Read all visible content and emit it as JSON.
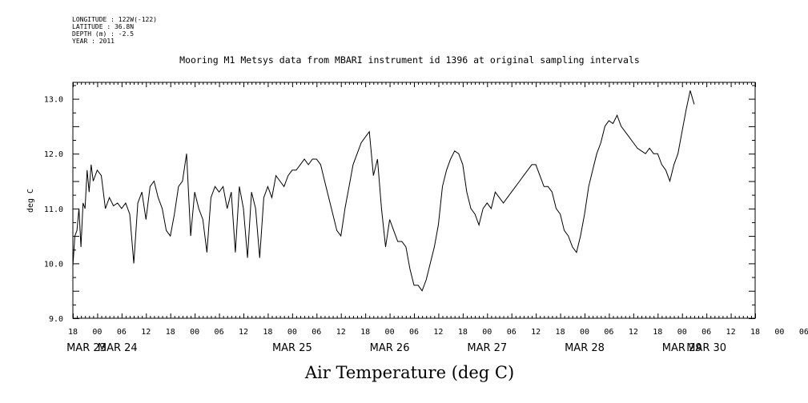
{
  "meta_lines": {
    "longitude": "LONGITUDE : 122W(-122)",
    "latitude": "LATITUDE : 36.8N",
    "depth": "DEPTH (m) : -2.5",
    "year": "YEAR : 2011"
  },
  "chart_data": {
    "type": "line",
    "title": "Mooring M1 Metsys data from MBARI instrument id 1396 at original sampling intervals",
    "xlabel": "Air Temperature (deg C)",
    "ylabel": "deg C",
    "ylim": [
      9.0,
      13.3
    ],
    "yticks": [
      "9.0",
      "10.0",
      "11.0",
      "12.0",
      "13.0"
    ],
    "xlim_hours": [
      0,
      168
    ],
    "hour_ticks": [
      "18",
      "00",
      "06",
      "12",
      "18",
      "00",
      "06",
      "12",
      "18",
      "00",
      "06",
      "12",
      "18",
      "00",
      "06",
      "12",
      "18",
      "00",
      "06",
      "12",
      "18",
      "00",
      "06",
      "12",
      "18",
      "00",
      "06",
      "12",
      "18",
      "00",
      "06",
      "12",
      "18"
    ],
    "date_labels": [
      "MAR 23",
      "MAR 24",
      "MAR 25",
      "MAR 26",
      "MAR 27",
      "MAR 28",
      "MAR 29",
      "MAR 30"
    ],
    "grid": false,
    "series": [
      {
        "x_hours_since_mar22_18": [
          0,
          0.5,
          1,
          1.5,
          2,
          2.5,
          3,
          3.5,
          4,
          4.5,
          5,
          6,
          7,
          8,
          9,
          10,
          11,
          12,
          13,
          14,
          15,
          16,
          17,
          18,
          19,
          20,
          21,
          22,
          23,
          24,
          25,
          26,
          27,
          28,
          29,
          30,
          31,
          32,
          33,
          34,
          35,
          36,
          37,
          38,
          39,
          40,
          41,
          42,
          43,
          44,
          45,
          46,
          47,
          48,
          49,
          50,
          51,
          52,
          53,
          54,
          55,
          56,
          57,
          58,
          59,
          60,
          61,
          62,
          63,
          64,
          65,
          66,
          67,
          68,
          69,
          70,
          71,
          72,
          73,
          74,
          75,
          76,
          77,
          78,
          79,
          80,
          81,
          82,
          83,
          84,
          85,
          86,
          87,
          88,
          89,
          90,
          91,
          92,
          93,
          94,
          95,
          96,
          97,
          98,
          99,
          100,
          101,
          102,
          103,
          104,
          105,
          106,
          107,
          108,
          109,
          110,
          111,
          112,
          113,
          114,
          115,
          116,
          117,
          118,
          119,
          120,
          121,
          122,
          123,
          124,
          125,
          126,
          127,
          128,
          129,
          130,
          131,
          132,
          133,
          134,
          135,
          136,
          137,
          138,
          139,
          140,
          141,
          142,
          143,
          144,
          145,
          146,
          147,
          148,
          149,
          150,
          151,
          152,
          153,
          154,
          155,
          156,
          157,
          158,
          159,
          160,
          161,
          162,
          163,
          164,
          165,
          166,
          167,
          167.5
        ],
        "values": [
          9.95,
          10.5,
          10.6,
          11.0,
          10.3,
          11.1,
          11.0,
          11.7,
          11.3,
          11.8,
          11.5,
          11.7,
          11.6,
          11.0,
          11.2,
          11.05,
          11.1,
          11.0,
          11.1,
          10.9,
          10.0,
          11.1,
          11.3,
          10.8,
          11.4,
          11.5,
          11.2,
          11.0,
          10.6,
          10.5,
          10.9,
          11.4,
          11.5,
          12.0,
          10.5,
          11.3,
          11.0,
          10.8,
          10.2,
          11.2,
          11.4,
          11.3,
          11.4,
          11.0,
          11.3,
          10.2,
          11.4,
          11.0,
          10.1,
          11.3,
          11.0,
          10.1,
          11.2,
          11.4,
          11.2,
          11.6,
          11.5,
          11.4,
          11.6,
          11.7,
          11.7,
          11.8,
          11.9,
          11.8,
          11.9,
          11.9,
          11.8,
          11.5,
          11.2,
          10.9,
          10.6,
          10.5,
          11.0,
          11.4,
          11.8,
          12.0,
          12.2,
          12.3,
          12.4,
          11.6,
          11.9,
          11.0,
          10.3,
          10.8,
          10.6,
          10.4,
          10.4,
          10.3,
          9.9,
          9.6,
          9.6,
          9.5,
          9.7,
          10.0,
          10.3,
          10.7,
          11.4,
          11.7,
          11.9,
          12.05,
          12.0,
          11.8,
          11.3,
          11.0,
          10.9,
          10.7,
          11.0,
          11.1,
          11.0,
          11.3,
          11.2,
          11.1,
          11.2,
          11.3,
          11.4,
          11.5,
          11.6,
          11.7,
          11.8,
          11.8,
          11.6,
          11.4,
          11.4,
          11.3,
          11.0,
          10.9,
          10.6,
          10.5,
          10.3,
          10.2,
          10.5,
          10.9,
          11.4,
          11.7,
          12.0,
          12.2,
          12.5,
          12.6,
          12.55,
          12.7,
          12.5,
          12.4,
          12.3,
          12.2,
          12.1,
          12.05,
          12.0,
          12.1,
          12.0,
          12.0,
          11.8,
          11.7,
          11.5,
          11.8,
          12.0,
          12.4,
          12.8,
          13.15,
          12.9
        ]
      }
    ]
  }
}
